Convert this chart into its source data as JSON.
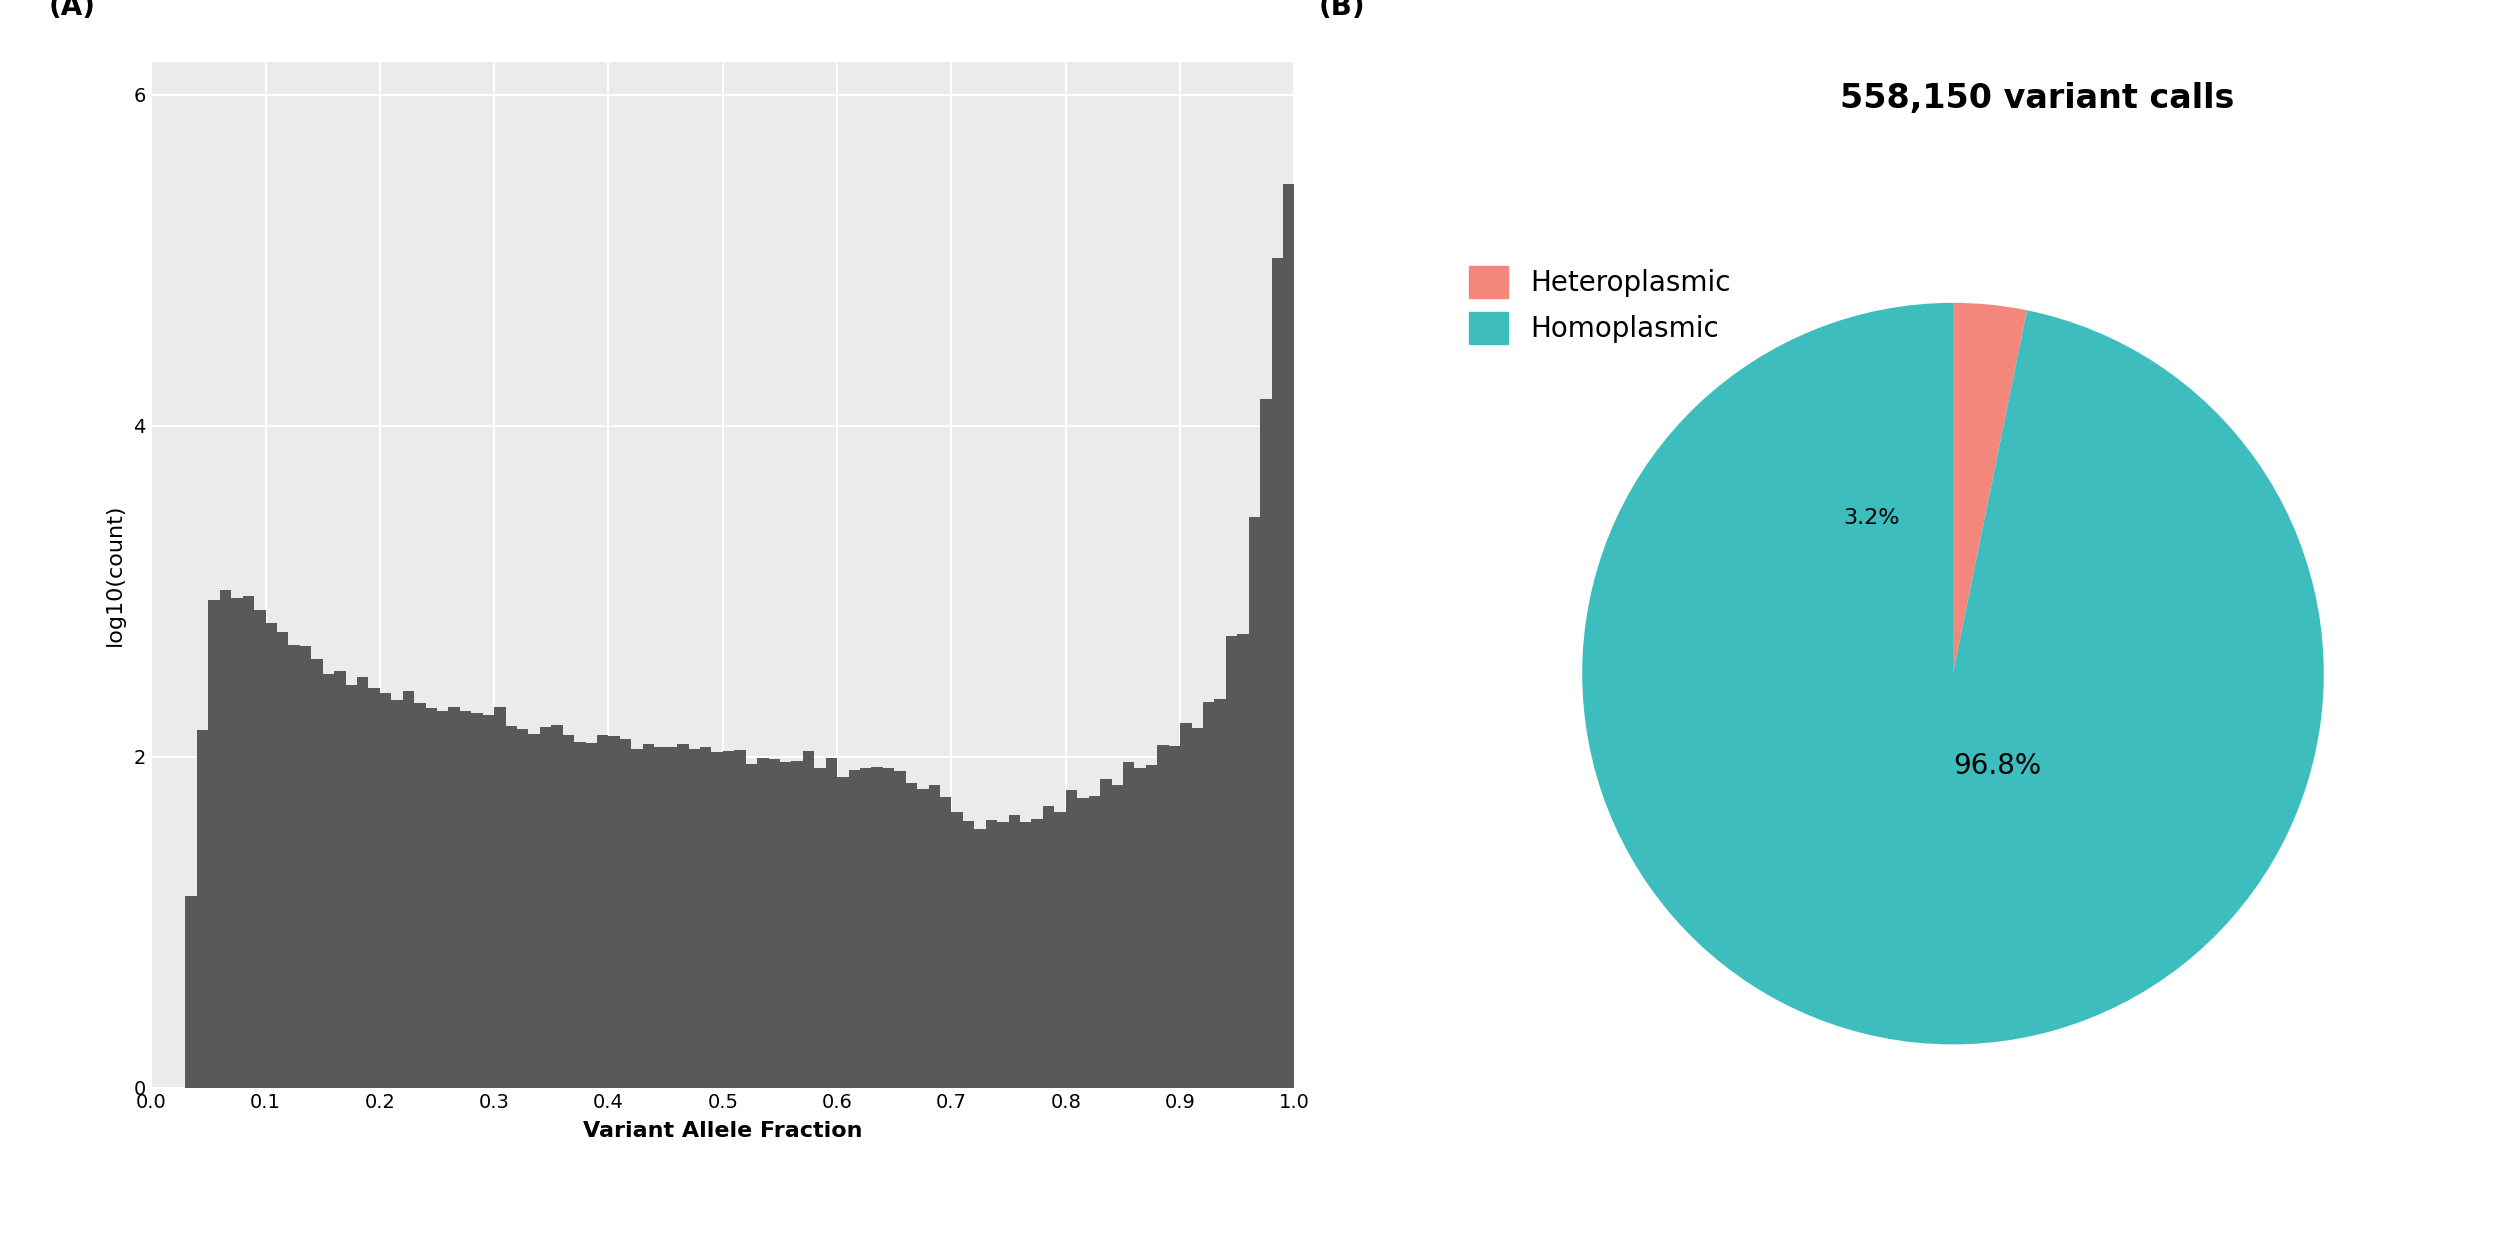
{
  "panel_a_label": "(A)",
  "panel_b_label": "(B)",
  "hist_xlabel": "Variant Allele Fraction",
  "hist_ylabel": "log10(count)",
  "hist_color": "#595959",
  "hist_bg_color": "#EBEBEB",
  "hist_grid_color": "#FFFFFF",
  "hist_ylim": [
    0,
    6.2
  ],
  "hist_xlim": [
    0.0,
    1.0
  ],
  "hist_yticks": [
    0,
    2,
    4,
    6
  ],
  "hist_xticks": [
    0.0,
    0.1,
    0.2,
    0.3,
    0.4,
    0.5,
    0.6,
    0.7,
    0.8,
    0.9,
    1.0
  ],
  "pie_title": "558,150 variant calls",
  "pie_labels": [
    "Heteroplasmic",
    "Homoplasmic"
  ],
  "pie_values": [
    3.2,
    96.8
  ],
  "pie_colors": [
    "#F4877C",
    "#3DBDBD"
  ],
  "pie_pct_labels": [
    "3.2%",
    "96.8%"
  ],
  "pie_legend_labels": [
    "Heteroplasmic",
    "Homoplasmic"
  ],
  "pie_bg_color": "#FFFFFF",
  "panel_label_fontsize": 20,
  "axis_label_fontsize": 16,
  "tick_label_fontsize": 14,
  "pie_title_fontsize": 24,
  "pie_legend_fontsize": 20,
  "pie_pct_fontsize_small": 16,
  "pie_pct_fontsize_large": 20
}
